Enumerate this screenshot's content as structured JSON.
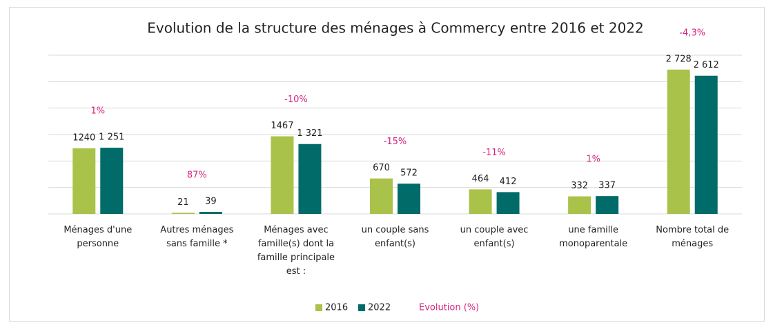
{
  "chart_data": {
    "type": "bar",
    "title": "Evolution de la structure des ménages à Commercy entre 2016 et 2022",
    "categories": [
      "Ménages d'une personne",
      "Autres ménages sans famille *",
      "Ménages avec famille(s) dont la famille principale est :",
      "un couple sans enfant(s)",
      "un couple avec enfant(s)",
      "une famille monoparentale",
      "Nombre total de ménages"
    ],
    "series": [
      {
        "name": "2016",
        "color": "#a9c24a",
        "values": [
          1240,
          21,
          1467,
          670,
          464,
          332,
          2728
        ],
        "value_labels": [
          "1240",
          "21",
          "1467",
          "670",
          "464",
          "332",
          "2 728"
        ]
      },
      {
        "name": "2022",
        "color": "#006b68",
        "values": [
          1251,
          39,
          1321,
          572,
          412,
          337,
          2612
        ],
        "value_labels": [
          "1 251",
          "39",
          "1 321",
          "572",
          "412",
          "337",
          "2 612"
        ]
      }
    ],
    "evolution": {
      "name": "Evolution (%)",
      "color": "#d6247f",
      "values": [
        1,
        87,
        -10,
        -15,
        -11,
        1,
        -4.3
      ],
      "value_labels": [
        "1%",
        "87%",
        "-10%",
        "-15%",
        "-11%",
        "1%",
        "-4,3%"
      ]
    },
    "ylim": [
      0,
      3000
    ],
    "yticks": [
      0,
      500,
      1000,
      1500,
      2000,
      2500,
      3000
    ],
    "grid": true
  }
}
